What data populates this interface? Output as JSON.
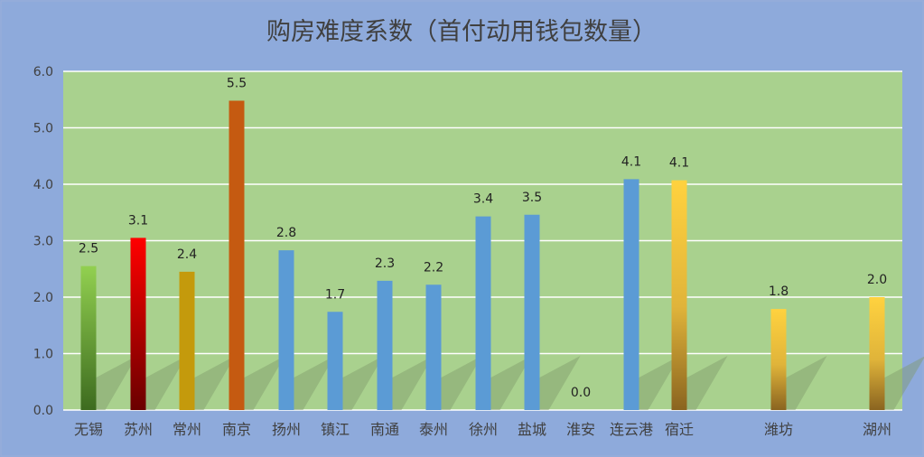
{
  "chart_data": {
    "type": "bar",
    "title": "购房难度系数（首付动用钱包数量）",
    "xlabel": "",
    "ylabel": "",
    "ylim": [
      0,
      6
    ],
    "yticks": [
      "0.0",
      "1.0",
      "2.0",
      "3.0",
      "4.0",
      "5.0",
      "6.0"
    ],
    "grid": true,
    "legend": "none",
    "categories": [
      "无锡",
      "苏州",
      "常州",
      "南京",
      "扬州",
      "镇江",
      "南通",
      "泰州",
      "徐州",
      "盐城",
      "淮安",
      "连云港",
      "宿迁",
      "潍坊",
      "湖州"
    ],
    "values": [
      2.55,
      3.05,
      2.45,
      5.48,
      2.83,
      1.74,
      2.29,
      2.22,
      3.43,
      3.46,
      0.0,
      4.09,
      4.07,
      1.79,
      2.0
    ],
    "data_labels": [
      "2.5",
      "3.1",
      "2.4",
      "5.5",
      "2.8",
      "1.7",
      "2.3",
      "2.2",
      "3.4",
      "3.5",
      "0.0",
      "4.1",
      "4.1",
      "1.8",
      "2.0"
    ],
    "colors": {
      "plot_background": "#a9d18e",
      "page_background": "#8eaadb",
      "grid": "#ffffff",
      "bars": [
        "gradient-green",
        "gradient-red",
        "#c49a0c",
        "#c55a11",
        "#5b9bd5",
        "#5b9bd5",
        "#5b9bd5",
        "#5b9bd5",
        "#5b9bd5",
        "#5b9bd5",
        "#5b9bd5",
        "#5b9bd5",
        "gradient-gold",
        "gradient-gold",
        "gradient-gold"
      ]
    }
  }
}
